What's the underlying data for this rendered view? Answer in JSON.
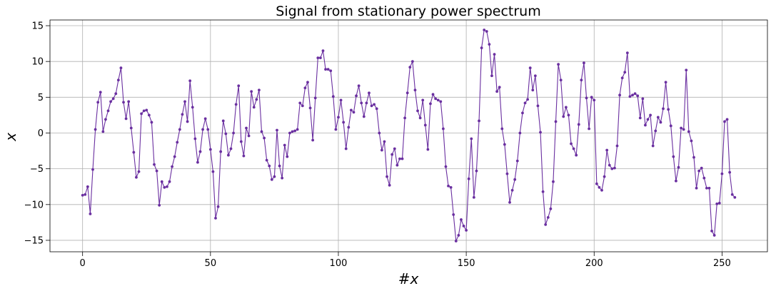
{
  "chart_data": {
    "type": "line",
    "title": "Signal from stationary power spectrum",
    "xlabel": "#x",
    "ylabel": "x",
    "xlim": [
      -12.75,
      267.75
    ],
    "ylim": [
      -16.6,
      15.8
    ],
    "xticks": [
      0,
      50,
      100,
      150,
      200,
      250
    ],
    "yticks": [
      -15,
      -10,
      -5,
      0,
      5,
      10,
      15
    ],
    "grid": true,
    "colors": {
      "line": "#6a2fa0",
      "marker": "#6a2fa0",
      "grid": "#b0b0b0"
    },
    "series": [
      {
        "x_start": 0,
        "values": [
          -8.7,
          -8.6,
          -7.5,
          -11.3,
          -5.1,
          0.5,
          4.3,
          5.7,
          0.2,
          1.9,
          3.1,
          4.4,
          4.8,
          5.5,
          7.4,
          9.1,
          4.3,
          2.0,
          4.4,
          0.7,
          -2.7,
          -6.2,
          -5.4,
          2.7,
          3.1,
          3.2,
          2.5,
          1.5,
          -4.4,
          -5.3,
          -10.1,
          -6.8,
          -7.6,
          -7.5,
          -6.8,
          -4.7,
          -3.3,
          -1.3,
          0.5,
          2.6,
          4.4,
          1.6,
          7.3,
          3.6,
          -0.8,
          -4.1,
          -2.6,
          0.5,
          2.0,
          0.5,
          -2.3,
          -5.4,
          -11.9,
          -10.3,
          -2.6,
          1.7,
          -0.1,
          -3.1,
          -2.2,
          0.0,
          4.0,
          6.6,
          -1.2,
          -3.2,
          0.7,
          -0.4,
          5.8,
          3.6,
          4.7,
          6.0,
          0.2,
          -0.7,
          -3.8,
          -4.6,
          -6.5,
          -6.1,
          0.4,
          -4.6,
          -6.3,
          -1.7,
          -3.3,
          0.0,
          0.2,
          0.3,
          0.5,
          4.2,
          3.8,
          6.3,
          7.1,
          3.5,
          -1.0,
          4.9,
          10.5,
          10.5,
          11.5,
          8.9,
          8.9,
          8.7,
          5.1,
          0.5,
          2.2,
          4.6,
          1.5,
          -2.2,
          0.8,
          3.2,
          2.9,
          5.2,
          6.6,
          4.2,
          2.3,
          4.2,
          5.6,
          3.8,
          4.0,
          3.4,
          0.0,
          -2.4,
          -1.2,
          -6.1,
          -7.3,
          -3.0,
          -2.2,
          -4.5,
          -3.6,
          -3.6,
          2.1,
          5.6,
          9.2,
          10.0,
          6.0,
          3.1,
          2.1,
          4.6,
          1.1,
          -2.3,
          4.1,
          5.4,
          4.8,
          4.6,
          4.4,
          0.6,
          -4.7,
          -7.4,
          -7.6,
          -11.4,
          -15.1,
          -14.3,
          -12.1,
          -13.0,
          -13.6,
          -6.4,
          -0.8,
          -9.0,
          -5.3,
          1.7,
          11.9,
          14.4,
          14.2,
          12.4,
          8.0,
          11.0,
          5.8,
          6.4,
          0.6,
          -1.6,
          -5.7,
          -9.7,
          -8.0,
          -6.5,
          -3.9,
          0.0,
          2.8,
          4.2,
          4.7,
          9.1,
          6.0,
          8.0,
          3.8,
          0.1,
          -8.2,
          -12.8,
          -11.8,
          -10.6,
          -6.8,
          1.6,
          9.6,
          7.4,
          2.3,
          3.6,
          2.5,
          -1.5,
          -2.2,
          -3.1,
          1.2,
          7.4,
          9.8,
          4.9,
          0.6,
          5.0,
          4.6,
          -7.1,
          -7.6,
          -8.0,
          -6.1,
          -2.4,
          -4.5,
          -5.0,
          -4.9,
          -1.8,
          5.3,
          7.7,
          8.5,
          11.2,
          5.1,
          5.3,
          5.5,
          5.2,
          2.1,
          4.8,
          1.1,
          1.9,
          2.5,
          -1.8,
          0.3,
          2.2,
          1.5,
          3.4,
          7.1,
          3.3,
          1.0,
          -3.3,
          -6.7,
          -4.8,
          0.7,
          0.5,
          8.8,
          0.2,
          -1.1,
          -3.4,
          -7.7,
          -5.3,
          -4.9,
          -6.3,
          -7.7,
          -7.7,
          -13.7,
          -14.3,
          -9.9,
          -9.8,
          -5.7,
          1.6,
          1.9,
          -5.5,
          -8.6,
          -9.0
        ]
      }
    ]
  }
}
